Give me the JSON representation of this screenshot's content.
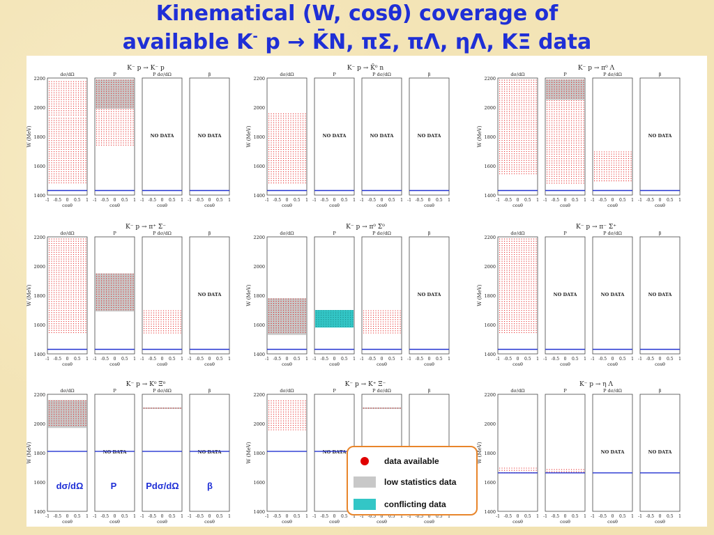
{
  "title": {
    "line1": "Kinematical (W, cosθ) coverage of",
    "line2_pre": "available K",
    "line2_sup": "-",
    "line2_post": " p → K̄N, πΣ, πΛ, ηΛ, KΞ data"
  },
  "chart_data": {
    "type": "scatter",
    "observables": [
      "dσ/dΩ",
      "P",
      "P dσ/dΩ",
      "β"
    ],
    "xlabel": "cosθ",
    "ylabel": "W (MeV)",
    "xlim": [
      -1,
      1
    ],
    "ylim": [
      1400,
      2200
    ],
    "x_ticks": [
      "-1",
      "-0.5",
      "0",
      "0.5",
      "1"
    ],
    "y_ticks": [
      "1400",
      "1600",
      "1800",
      "2000",
      "2200"
    ],
    "no_data_label": "NO DATA",
    "reactions": [
      {
        "label": "K⁻ p → K⁻ p",
        "panels": [
          {
            "coverage": [
              {
                "w": [
                  1480,
                  1930
                ],
                "kind": "data"
              },
              {
                "w": [
                  1930,
                  2180
                ],
                "kind": "data"
              }
            ]
          },
          {
            "coverage": [
              {
                "w": [
                  1730,
                  1990
                ],
                "kind": "data"
              },
              {
                "w": [
                  1990,
                  2190
                ],
                "kind": "low"
              }
            ]
          },
          {
            "nodata": true
          },
          {
            "nodata": true
          }
        ]
      },
      {
        "label": "K⁻ p → K̄⁰ n",
        "panels": [
          {
            "coverage": [
              {
                "w": [
                  1470,
                  1960
                ],
                "kind": "data"
              }
            ]
          },
          {
            "nodata": true
          },
          {
            "nodata": true
          },
          {
            "nodata": true
          }
        ]
      },
      {
        "label": "K⁻ p → π⁰ Λ",
        "panels": [
          {
            "coverage": [
              {
                "w": [
                  1530,
                  2190
                ],
                "kind": "data"
              }
            ]
          },
          {
            "coverage": [
              {
                "w": [
                  1470,
                  2050
                ],
                "kind": "data"
              },
              {
                "w": [
                  2050,
                  2190
                ],
                "kind": "low"
              }
            ]
          },
          {
            "coverage": [
              {
                "w": [
                  1490,
                  1700
                ],
                "kind": "data"
              }
            ]
          },
          {
            "nodata": true
          }
        ]
      },
      {
        "label": "K⁻ p → π⁺ Σ⁻",
        "panels": [
          {
            "coverage": [
              {
                "w": [
                  1530,
                  2190
                ],
                "kind": "data"
              }
            ]
          },
          {
            "coverage": [
              {
                "w": [
                  1690,
                  1950
                ],
                "kind": "low"
              }
            ]
          },
          {
            "coverage": [
              {
                "w": [
                  1530,
                  1700
                ],
                "kind": "data"
              }
            ]
          },
          {
            "nodata": true
          }
        ]
      },
      {
        "label": "K⁻ p → π⁰ Σ⁰",
        "panels": [
          {
            "coverage": [
              {
                "w": [
                  1530,
                  1780
                ],
                "kind": "low"
              }
            ]
          },
          {
            "coverage": [
              {
                "w": [
                  1580,
                  1700
                ],
                "kind": "conflict"
              }
            ]
          },
          {
            "coverage": [
              {
                "w": [
                  1530,
                  1700
                ],
                "kind": "data"
              }
            ]
          },
          {
            "nodata": true
          }
        ]
      },
      {
        "label": "K⁻ p → π⁻ Σ⁺",
        "panels": [
          {
            "coverage": [
              {
                "w": [
                  1530,
                  2190
                ],
                "kind": "data"
              }
            ]
          },
          {
            "nodata": true
          },
          {
            "nodata": true
          },
          {
            "nodata": true
          }
        ]
      },
      {
        "label": "K⁻ p → K⁰ Ξ⁰",
        "panels": [
          {
            "coverage": [
              {
                "w": [
                  1970,
                  2160
                ],
                "kind": "low"
              }
            ]
          },
          {
            "nodata": true
          },
          {
            "coverage": [
              {
                "w": [
                  2100,
                  2110
                ],
                "kind": "low"
              }
            ]
          },
          {
            "nodata": true
          }
        ]
      },
      {
        "label": "K⁻ p → K⁺ Ξ⁻",
        "panels": [
          {
            "coverage": [
              {
                "w": [
                  1940,
                  2160
                ],
                "kind": "data"
              }
            ]
          },
          {
            "nodata": true
          },
          {
            "coverage": [
              {
                "w": [
                  2100,
                  2110
                ],
                "kind": "low"
              }
            ]
          },
          {
            "nodata": true
          }
        ]
      },
      {
        "label": "K⁻ p → η Λ",
        "panels": [
          {
            "coverage": [
              {
                "w": [
                  1660,
                  1700
                ],
                "kind": "data"
              }
            ]
          },
          {
            "coverage": [
              {
                "w": [
                  1660,
                  1690
                ],
                "kind": "data"
              }
            ]
          },
          {
            "nodata": true
          },
          {
            "nodata": true
          }
        ]
      }
    ],
    "threshold_w": [
      1431,
      1431,
      1431,
      1431,
      1431,
      1431,
      1810,
      1810,
      1663
    ],
    "legend": [
      {
        "label": "data available",
        "kind": "data"
      },
      {
        "label": "low statistics data",
        "kind": "low"
      },
      {
        "label": "conflicting data",
        "kind": "conflict"
      }
    ],
    "colors": {
      "data": "#e00000",
      "low": "#c8c8c8",
      "conflict": "#33c6c6",
      "threshold": "#2030d0"
    }
  },
  "bottom_labels": [
    "dσ/dΩ",
    "P",
    "Pdσ/dΩ",
    "β"
  ]
}
